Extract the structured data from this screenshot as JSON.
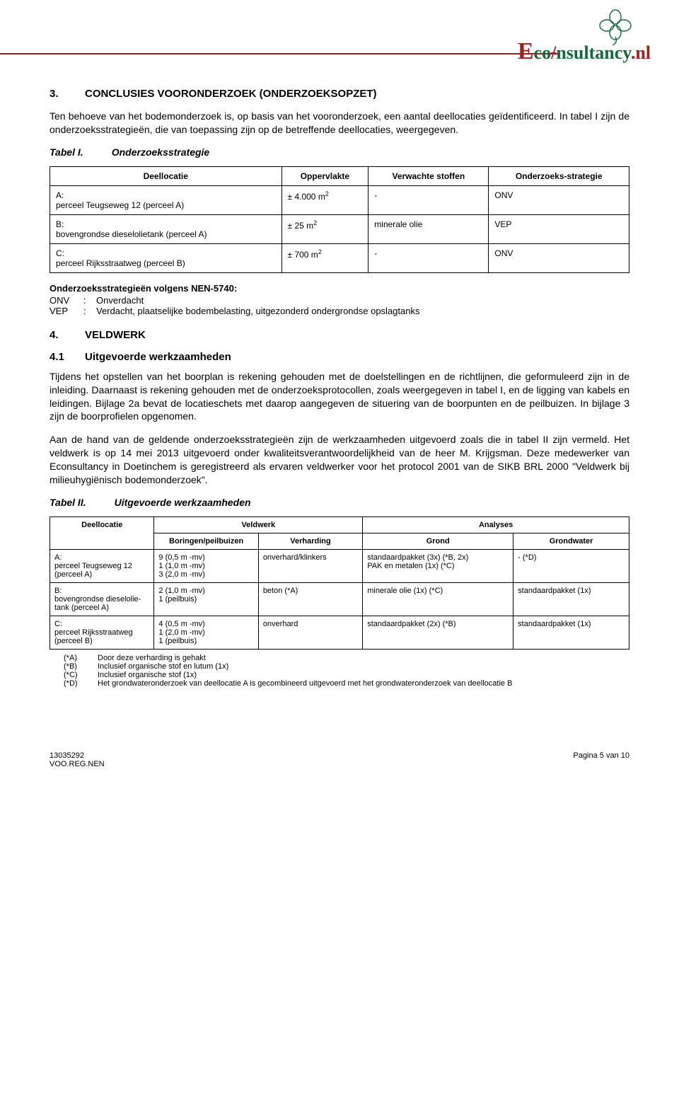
{
  "logo": {
    "e": "E",
    "co": "co",
    "slash": "/",
    "rest": "nsultancy",
    "nl": ".nl"
  },
  "section3": {
    "num": "3.",
    "title": "CONCLUSIES VOORONDERZOEK (ONDERZOEKSOPZET)",
    "p1": "Ten behoeve van het bodemonderzoek is, op basis van het vooronderzoek, een aantal deellocaties geïdentificeerd. In tabel I zijn de onderzoeksstrategieën, die van toepassing zijn op de betreffende deellocaties, weergegeven."
  },
  "table1": {
    "caption_a": "Tabel I.",
    "caption_b": "Onderzoeksstrategie",
    "headers": [
      "Deellocatie",
      "Oppervlakte",
      "Verwachte stoffen",
      "Onderzoeks-strategie"
    ],
    "rows": [
      {
        "d": "A:\nperceel Teugseweg 12 (perceel A)",
        "o": "± 4.000 m²",
        "v": "-",
        "s": "ONV"
      },
      {
        "d": "B:\nbovengrondse dieselolietank (perceel A)",
        "o": "± 25 m²",
        "v": "minerale olie",
        "s": "VEP"
      },
      {
        "d": "C:\nperceel Rijksstraatweg (perceel B)",
        "o": "± 700 m²",
        "v": "-",
        "s": "ONV"
      }
    ]
  },
  "defs": {
    "title": "Onderzoeksstrategieën volgens NEN-5740:",
    "rows": [
      {
        "k": "ONV",
        "c": ":",
        "t": "Onverdacht"
      },
      {
        "k": "VEP",
        "c": ":",
        "t": "Verdacht, plaatselijke bodembelasting, uitgezonderd ondergrondse opslagtanks"
      }
    ]
  },
  "section4": {
    "num": "4.",
    "title": "VELDWERK",
    "sub_num": "4.1",
    "sub_title": "Uitgevoerde werkzaamheden",
    "p1": "Tijdens het opstellen van het boorplan is rekening gehouden met de doelstellingen en de richtlijnen, die geformuleerd zijn in de inleiding. Daarnaast is rekening gehouden met de onderzoeksprotocollen, zoals weergegeven in tabel I, en de ligging van kabels en leidingen. Bijlage 2a bevat de locatieschets met daarop aangegeven de situering van de boorpunten en de peilbuizen. In bijlage 3 zijn de boorprofielen opgenomen.",
    "p2": "Aan de hand van de geldende onderzoeksstrategieën zijn de werkzaamheden uitgevoerd zoals die in tabel II zijn vermeld. Het veldwerk is op 14 mei 2013 uitgevoerd onder kwaliteitsverantwoordelijkheid van de heer M. Krijgsman. Deze medewerker van Econsultancy in Doetinchem is geregistreerd als ervaren veldwerker voor het protocol 2001 van de SIKB BRL 2000 \"Veldwerk bij milieuhygiënisch bodemonderzoek\"."
  },
  "table2": {
    "caption_a": "Tabel II.",
    "caption_b": "Uitgevoerde werkzaamheden",
    "h1": "Deellocatie",
    "h2": "Veldwerk",
    "h3": "Analyses",
    "sh": [
      "Boringen/peilbuizen",
      "Verharding",
      "Grond",
      "Grondwater"
    ],
    "rows": [
      {
        "d": "A:\nperceel Teugseweg 12\n(perceel A)",
        "b": "9 (0,5 m -mv)\n1 (1,0 m -mv)\n3 (2,0 m -mv)",
        "v": "onverhard/klinkers",
        "g": "standaardpakket (3x) (*B, 2x)\nPAK en metalen (1x) (*C)",
        "gw": "- (*D)"
      },
      {
        "d": "B:\nbovengrondse dieselolie-\ntank (perceel A)",
        "b": "2 (1,0 m -mv)\n1 (peilbuis)",
        "v": "beton (*A)",
        "g": "minerale olie (1x) (*C)",
        "gw": "standaardpakket (1x)"
      },
      {
        "d": "C:\nperceel Rijksstraatweg\n(perceel B)",
        "b": "4 (0,5 m -mv)\n1 (2,0 m -mv)\n1 (peilbuis)",
        "v": "onverhard",
        "g": "standaardpakket (2x) (*B)",
        "gw": "standaardpakket (1x)"
      }
    ],
    "notes": [
      {
        "k": "(*A)",
        "t": "Door deze verharding is gehakt"
      },
      {
        "k": "(*B)",
        "t": "Inclusief organische stof en lutum (1x)"
      },
      {
        "k": "(*C)",
        "t": "Inclusief organische stof (1x)"
      },
      {
        "k": "(*D)",
        "t": "Het grondwateronderzoek van deellocatie A is gecombineerd uitgevoerd met het grondwateronderzoek van deellocatie B"
      }
    ]
  },
  "footer": {
    "left1": "13035292",
    "left2": "VOO.REG.NEN",
    "right": "Pagina 5 van 10"
  }
}
